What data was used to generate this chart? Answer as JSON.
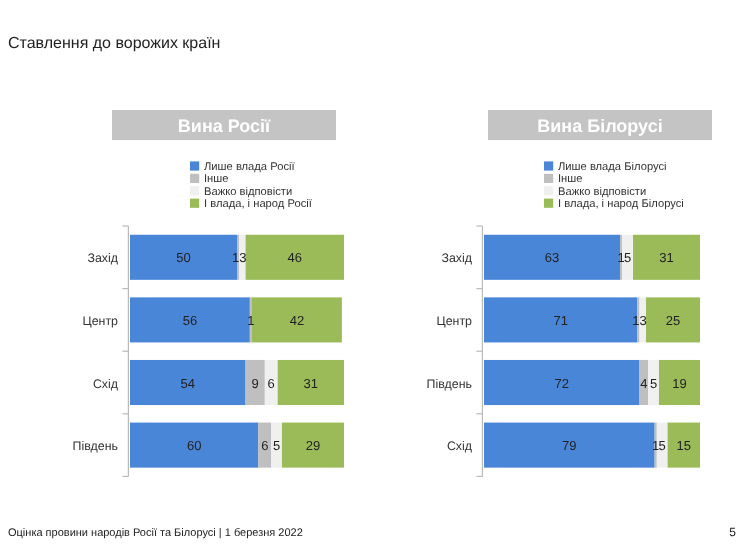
{
  "chart_data": [
    {
      "type": "bar",
      "orientation": "horizontal",
      "stacked": true,
      "title": "Вина Росії",
      "categories": [
        "Захід",
        "Центр",
        "Схід",
        "Південь"
      ],
      "xlim": [
        0,
        100
      ],
      "tick_labels": "y",
      "legend": "top",
      "annotations": [
        "Ставлення до ворожих країн",
        "Оцінка провини народів Росії та Білорусі | 1 березня 2022",
        "5"
      ],
      "series": [
        {
          "name": "Лише влада Росії",
          "color": "#4a86d8",
          "values": [
            50,
            56,
            54,
            60
          ],
          "value_labels": [
            "50",
            "56",
            "54",
            "60"
          ]
        },
        {
          "name": "Інше",
          "color": "#bfbfbf",
          "values": [
            1,
            1,
            9,
            6
          ],
          "value_labels": [
            "1",
            "1",
            "9",
            "6"
          ]
        },
        {
          "name": "Важко відповісти",
          "color": "#f0f0f0",
          "values": [
            3,
            null,
            6,
            5
          ],
          "value_labels": [
            "3",
            null,
            "6",
            "5"
          ]
        },
        {
          "name": "І влада, і народ Росії",
          "color": "#9bbb59",
          "values": [
            46,
            42,
            31,
            29
          ],
          "value_labels": [
            "46",
            "42",
            "31",
            "29"
          ]
        }
      ]
    },
    {
      "type": "bar",
      "orientation": "horizontal",
      "stacked": true,
      "title": "Вина Білорусі",
      "categories": [
        "Захід",
        "Центр",
        "Південь",
        "Схід"
      ],
      "xlim": [
        0,
        100
      ],
      "tick_labels": "y",
      "legend": "top",
      "series": [
        {
          "name": "Лише влада Білорусі",
          "color": "#4a86d8",
          "values": [
            63,
            71,
            72,
            79
          ],
          "value_labels": [
            "63",
            "71",
            "72",
            "79"
          ]
        },
        {
          "name": "Інше",
          "color": "#bfbfbf",
          "values": [
            1,
            1,
            4,
            1
          ],
          "value_labels": [
            "1",
            "1",
            "4",
            "1"
          ]
        },
        {
          "name": "Важко відповісти",
          "color": "#f0f0f0",
          "values": [
            5,
            3,
            5,
            5
          ],
          "value_labels": [
            "5",
            "3",
            "5",
            "5"
          ]
        },
        {
          "name": "І влада, і народ Білорусі",
          "color": "#9bbb59",
          "values": [
            31,
            25,
            19,
            15
          ],
          "value_labels": [
            "31",
            "25",
            "19",
            "15"
          ]
        }
      ]
    }
  ]
}
